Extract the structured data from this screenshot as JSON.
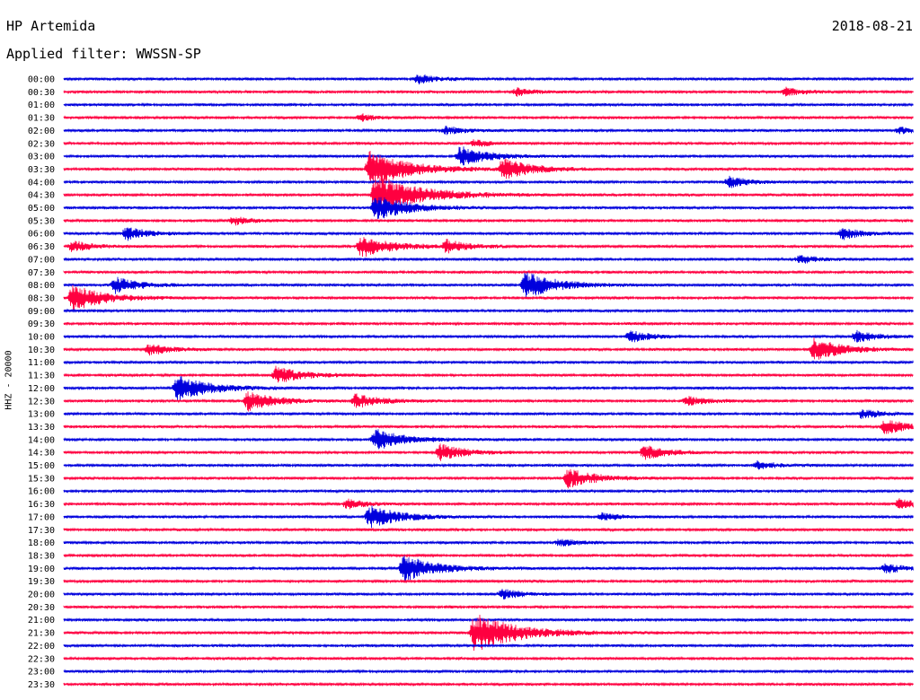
{
  "header": {
    "station": "HP Artemida",
    "date": "2018-08-21",
    "filter_label": "Applied filter: WWSSN-SP"
  },
  "colors": {
    "even": "#0000dd",
    "odd": "#ff0040"
  },
  "chart_data": {
    "type": "line",
    "title": "HP Artemida",
    "subtitle": "Applied filter: WWSSN-SP",
    "ylabel": "HHZ - 20000",
    "rows": [
      "00:00",
      "00:30",
      "01:00",
      "01:30",
      "02:00",
      "02:30",
      "03:00",
      "03:30",
      "04:00",
      "04:30",
      "05:00",
      "05:30",
      "06:00",
      "06:30",
      "07:00",
      "07:30",
      "08:00",
      "08:30",
      "09:00",
      "09:30",
      "10:00",
      "10:30",
      "11:00",
      "11:30",
      "12:00",
      "12:30",
      "13:00",
      "13:30",
      "14:00",
      "14:30",
      "15:00",
      "15:30",
      "16:00",
      "16:30",
      "17:00",
      "17:30",
      "18:00",
      "18:30",
      "19:00",
      "19:30",
      "20:00",
      "20:30",
      "21:00",
      "21:30",
      "22:00",
      "22:30",
      "23:00",
      "23:30"
    ],
    "row_minutes": 30,
    "legend": "none",
    "grid": false,
    "events": [
      {
        "row": "00:00",
        "minute": 12.5,
        "amp": 0.6
      },
      {
        "row": "00:30",
        "minute": 16.0,
        "amp": 0.5
      },
      {
        "row": "00:30",
        "minute": 25.5,
        "amp": 0.5
      },
      {
        "row": "01:30",
        "minute": 10.5,
        "amp": 0.4
      },
      {
        "row": "02:00",
        "minute": 13.5,
        "amp": 0.5
      },
      {
        "row": "02:00",
        "minute": 29.5,
        "amp": 0.4
      },
      {
        "row": "02:30",
        "minute": 14.5,
        "amp": 0.4
      },
      {
        "row": "03:00",
        "minute": 14.0,
        "amp": 1.2
      },
      {
        "row": "03:30",
        "minute": 15.5,
        "amp": 1.3
      },
      {
        "row": "03:30",
        "minute": 10.8,
        "amp": 2.2
      },
      {
        "row": "04:00",
        "minute": 23.5,
        "amp": 0.7
      },
      {
        "row": "04:30",
        "minute": 11.0,
        "amp": 2.5
      },
      {
        "row": "05:00",
        "minute": 11.0,
        "amp": 1.6
      },
      {
        "row": "05:30",
        "minute": 6.0,
        "amp": 0.5
      },
      {
        "row": "06:00",
        "minute": 2.2,
        "amp": 0.8
      },
      {
        "row": "06:00",
        "minute": 27.5,
        "amp": 0.7
      },
      {
        "row": "06:30",
        "minute": 10.5,
        "amp": 1.4
      },
      {
        "row": "06:30",
        "minute": 13.5,
        "amp": 0.8
      },
      {
        "row": "06:30",
        "minute": 0.3,
        "amp": 0.7
      },
      {
        "row": "07:00",
        "minute": 26.0,
        "amp": 0.5
      },
      {
        "row": "08:00",
        "minute": 1.8,
        "amp": 1.0
      },
      {
        "row": "08:00",
        "minute": 16.3,
        "amp": 1.6
      },
      {
        "row": "08:30",
        "minute": 0.3,
        "amp": 1.6
      },
      {
        "row": "10:00",
        "minute": 20.0,
        "amp": 0.7
      },
      {
        "row": "10:00",
        "minute": 28.0,
        "amp": 0.7
      },
      {
        "row": "10:30",
        "minute": 3.0,
        "amp": 0.7
      },
      {
        "row": "10:30",
        "minute": 26.5,
        "amp": 1.4
      },
      {
        "row": "11:30",
        "minute": 7.5,
        "amp": 1.1
      },
      {
        "row": "12:00",
        "minute": 4.0,
        "amp": 1.6
      },
      {
        "row": "12:30",
        "minute": 6.5,
        "amp": 1.2
      },
      {
        "row": "12:30",
        "minute": 10.3,
        "amp": 0.9
      },
      {
        "row": "12:30",
        "minute": 22.0,
        "amp": 0.6
      },
      {
        "row": "13:00",
        "minute": 28.2,
        "amp": 0.6
      },
      {
        "row": "13:30",
        "minute": 29.0,
        "amp": 0.9
      },
      {
        "row": "14:00",
        "minute": 11.0,
        "amp": 1.3
      },
      {
        "row": "14:30",
        "minute": 13.3,
        "amp": 1.0
      },
      {
        "row": "14:30",
        "minute": 20.5,
        "amp": 0.9
      },
      {
        "row": "15:00",
        "minute": 24.5,
        "amp": 0.5
      },
      {
        "row": "15:30",
        "minute": 17.8,
        "amp": 1.2
      },
      {
        "row": "16:30",
        "minute": 10.0,
        "amp": 0.6
      },
      {
        "row": "16:30",
        "minute": 29.5,
        "amp": 0.6
      },
      {
        "row": "17:00",
        "minute": 10.8,
        "amp": 1.4
      },
      {
        "row": "17:00",
        "minute": 19.0,
        "amp": 0.5
      },
      {
        "row": "18:00",
        "minute": 17.5,
        "amp": 0.5
      },
      {
        "row": "19:00",
        "minute": 12.0,
        "amp": 1.6
      },
      {
        "row": "19:00",
        "minute": 29.0,
        "amp": 0.6
      },
      {
        "row": "20:00",
        "minute": 15.5,
        "amp": 0.6
      },
      {
        "row": "21:30",
        "minute": 14.5,
        "amp": 2.4
      }
    ]
  }
}
